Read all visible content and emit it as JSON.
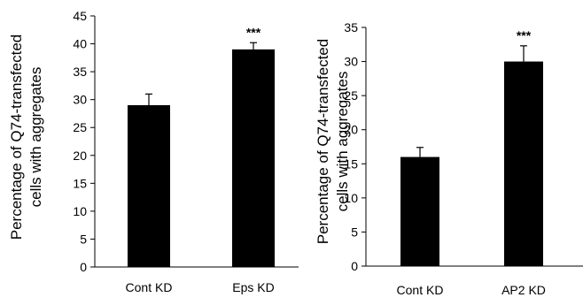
{
  "chart_data": [
    {
      "type": "bar",
      "categories": [
        "Cont KD",
        "Eps KD"
      ],
      "values": [
        29,
        39
      ],
      "errors": [
        2.0,
        1.2
      ],
      "significance": [
        "",
        "***"
      ],
      "ylabel": [
        "Percentage of Q74-transfected",
        "cells with aggregates"
      ],
      "ylim": [
        0,
        45
      ],
      "yticks": [
        "0",
        "5",
        "10",
        "15",
        "20",
        "25",
        "30",
        "35",
        "40",
        "45"
      ],
      "bar_color": "#000000",
      "grid": false
    },
    {
      "type": "bar",
      "categories": [
        "Cont KD",
        "AP2 KD"
      ],
      "values": [
        16,
        30
      ],
      "errors": [
        1.4,
        2.3
      ],
      "significance": [
        "",
        "***"
      ],
      "ylabel": [
        "Percentage of Q74-transfected",
        "cells with aggregates"
      ],
      "ylim": [
        0,
        35
      ],
      "yticks": [
        "0",
        "5",
        "10",
        "15",
        "20",
        "25",
        "30",
        "35"
      ],
      "bar_color": "#000000",
      "grid": false
    }
  ]
}
